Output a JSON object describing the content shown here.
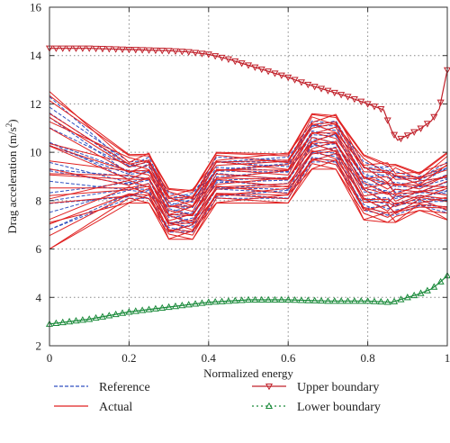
{
  "chart_data": {
    "type": "line",
    "title": "",
    "xlabel": "Normalized energy",
    "ylabel": "Drag acceleration (m/s²)",
    "ylabel_base": "Drag acceleration (m/s",
    "ylabel_sup": "2",
    "ylabel_end": ")",
    "xlim": [
      0,
      1
    ],
    "ylim": [
      2,
      16
    ],
    "x_ticks": [
      0,
      0.2,
      0.4,
      0.6,
      0.8,
      1
    ],
    "x_tick_labels": [
      "0",
      "0.2",
      "0.4",
      "0.6",
      "0.8",
      "1"
    ],
    "y_ticks": [
      2,
      4,
      6,
      8,
      10,
      12,
      14,
      16
    ],
    "y_tick_labels": [
      "2",
      "4",
      "6",
      "8",
      "10",
      "12",
      "14",
      "16"
    ],
    "grid": true,
    "legend_position": "bottom",
    "series": [
      {
        "name": "Upper boundary",
        "color": "#c0202a",
        "marker": "triangle-down",
        "x": [
          0,
          0.1,
          0.2,
          0.3,
          0.35,
          0.4,
          0.45,
          0.5,
          0.55,
          0.6,
          0.65,
          0.7,
          0.75,
          0.8,
          0.84,
          0.86,
          0.875,
          0.9,
          0.93,
          0.96,
          0.98,
          1.0
        ],
        "y": [
          14.3,
          14.3,
          14.25,
          14.2,
          14.15,
          14.05,
          13.85,
          13.6,
          13.35,
          13.1,
          12.8,
          12.55,
          12.3,
          12.0,
          11.75,
          10.9,
          10.5,
          10.7,
          10.95,
          11.3,
          11.8,
          13.4
        ]
      },
      {
        "name": "Lower boundary",
        "color": "#1a8a3a",
        "marker": "triangle-up",
        "x": [
          0,
          0.1,
          0.2,
          0.3,
          0.4,
          0.5,
          0.6,
          0.7,
          0.8,
          0.86,
          0.9,
          0.93,
          0.96,
          0.98,
          1.0
        ],
        "y": [
          2.9,
          3.1,
          3.4,
          3.6,
          3.8,
          3.9,
          3.9,
          3.85,
          3.85,
          3.8,
          4.0,
          4.15,
          4.35,
          4.6,
          4.9
        ]
      },
      {
        "name": "Reference",
        "color": "#3050c0",
        "style": "dashed",
        "x": [
          0,
          0.2,
          0.25,
          0.3,
          0.36,
          0.42,
          0.6,
          0.66,
          0.72,
          0.79,
          0.85,
          0.87,
          0.93,
          1.0
        ],
        "y_top": [
          12.3,
          9.6,
          9.8,
          8.3,
          8.3,
          9.8,
          9.8,
          11.3,
          11.3,
          9.6,
          9.4,
          9.2,
          9.0,
          9.6
        ],
        "y_bottom": [
          6.8,
          8.1,
          8.1,
          6.7,
          6.7,
          8.1,
          8.1,
          9.6,
          9.6,
          7.6,
          7.4,
          7.4,
          7.8,
          7.5
        ],
        "curves": 18
      },
      {
        "name": "Actual",
        "color": "#e02020",
        "style": "solid",
        "x": [
          0,
          0.2,
          0.25,
          0.3,
          0.36,
          0.42,
          0.6,
          0.66,
          0.72,
          0.79,
          0.85,
          0.87,
          0.93,
          1.0
        ],
        "y_top": [
          12.6,
          9.9,
          10.0,
          8.5,
          8.5,
          10.0,
          10.0,
          11.6,
          11.6,
          9.9,
          9.6,
          9.5,
          9.2,
          10.0
        ],
        "y_bottom": [
          6.0,
          7.9,
          7.9,
          6.4,
          6.4,
          7.9,
          7.9,
          9.3,
          9.3,
          7.2,
          7.1,
          7.1,
          7.6,
          7.2
        ],
        "curves": 24
      }
    ]
  }
}
